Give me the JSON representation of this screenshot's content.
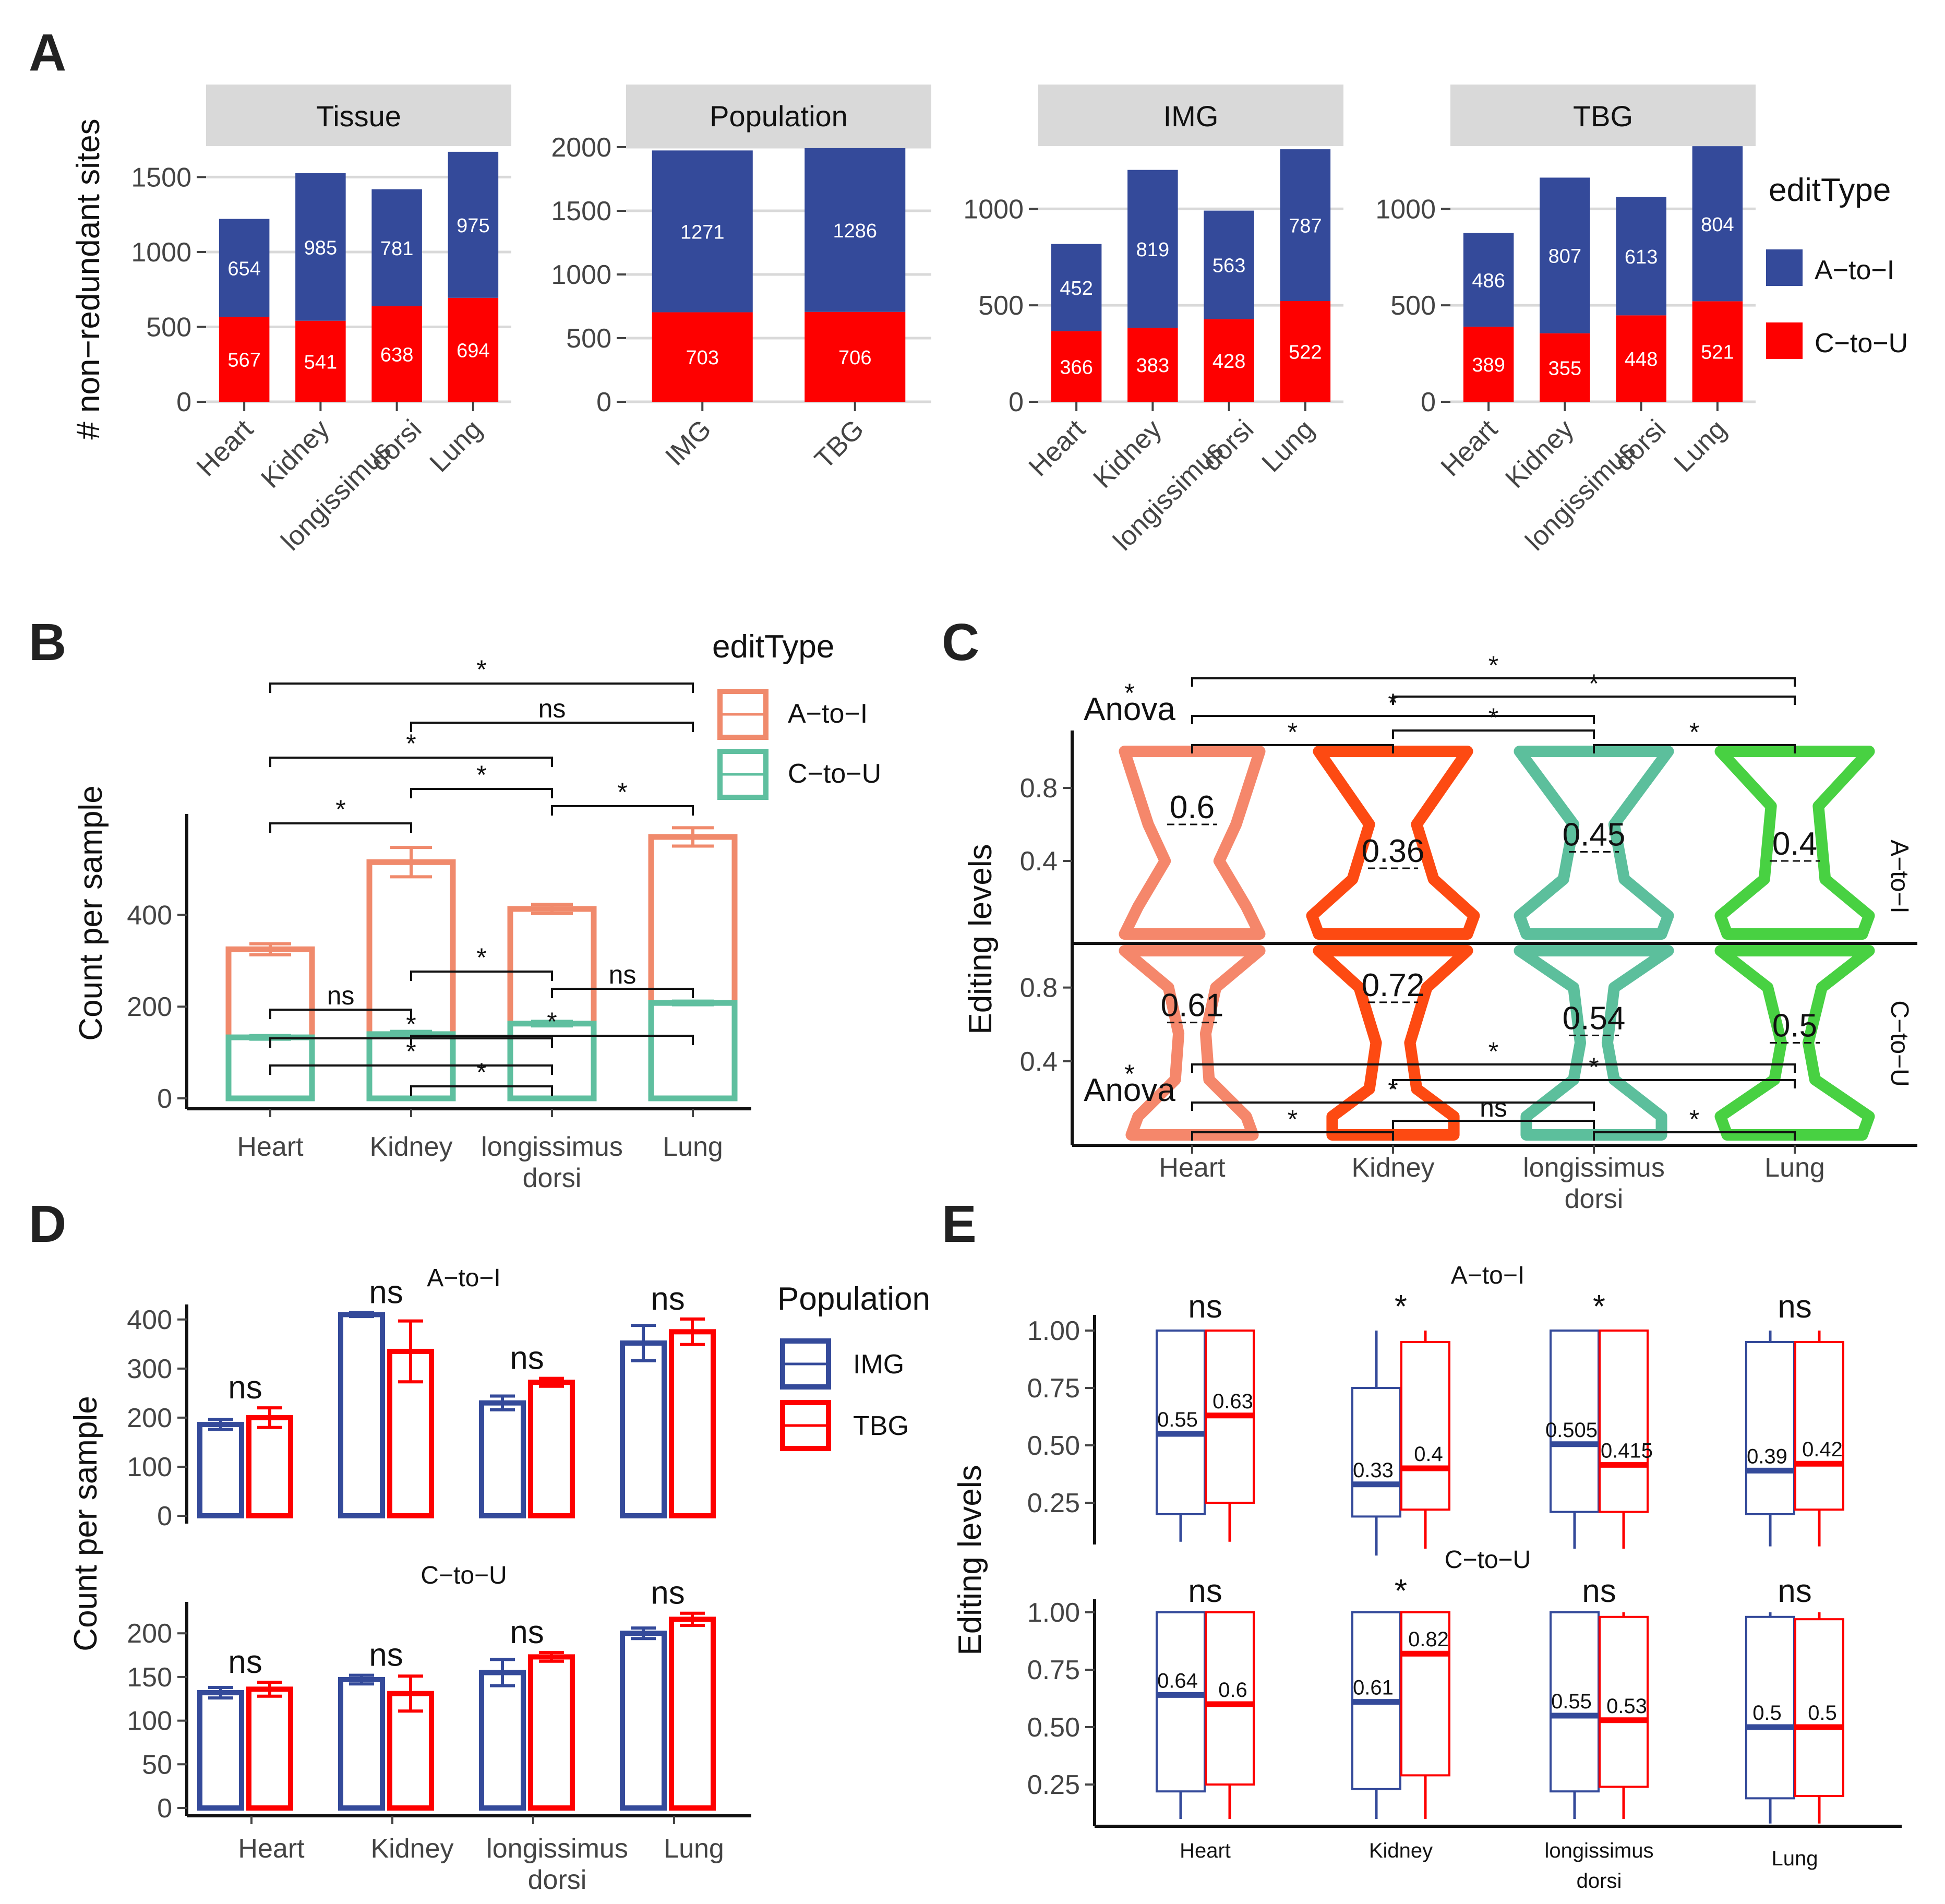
{
  "panel_labels": [
    "A",
    "B",
    "C",
    "D",
    "E"
  ],
  "colors": {
    "a_to_i_dark": "#344a9a",
    "c_to_u_dark": "#fe0000",
    "a_to_i_light": "#f08a6c",
    "c_to_u_light": "#5fbf9f",
    "heart_violin": "#f5876b",
    "kidney_violin": "#fd4a12",
    "ld_violin": "#5cbf9c",
    "lung_violin": "#48d142",
    "img": "#344a9a",
    "tbg": "#fe0000",
    "strip": "#d9d9d9"
  },
  "chart_data": [
    {
      "id": "A",
      "type": "bar",
      "stacked": true,
      "ylabel": "# non−redundant sites",
      "legend": {
        "title": "editType",
        "entries": [
          "A−to−I",
          "C−to−U"
        ]
      },
      "facets": [
        {
          "strip": "Tissue",
          "categories": [
            "Heart",
            "Kidney",
            "longissimus dorsi",
            "Lung"
          ],
          "ylim": [
            0,
            1700
          ],
          "yticks": [
            0,
            500,
            1000,
            1500
          ],
          "series": [
            {
              "name": "C−to−U",
              "values": [
                567,
                541,
                638,
                694
              ]
            },
            {
              "name": "A−to−I",
              "values": [
                654,
                985,
                781,
                975
              ]
            }
          ]
        },
        {
          "strip": "Population",
          "categories": [
            "IMG",
            "TBG"
          ],
          "ylim": [
            0,
            2000
          ],
          "yticks": [
            0,
            500,
            1000,
            1500,
            2000
          ],
          "series": [
            {
              "name": "C−to−U",
              "values": [
                703,
                706
              ]
            },
            {
              "name": "A−to−I",
              "values": [
                1271,
                1286
              ]
            }
          ]
        },
        {
          "strip": "IMG",
          "categories": [
            "Heart",
            "Kidney",
            "longissimus dorsi",
            "Lung"
          ],
          "ylim": [
            0,
            1320
          ],
          "yticks": [
            0,
            500,
            1000
          ],
          "series": [
            {
              "name": "C−to−U",
              "values": [
                366,
                383,
                428,
                522
              ]
            },
            {
              "name": "A−to−I",
              "values": [
                452,
                819,
                563,
                787
              ]
            }
          ]
        },
        {
          "strip": "TBG",
          "categories": [
            "Heart",
            "Kidney",
            "longissimus dorsi",
            "Lung"
          ],
          "ylim": [
            0,
            1320
          ],
          "yticks": [
            0,
            500,
            1000
          ],
          "series": [
            {
              "name": "C−to−U",
              "values": [
                389,
                355,
                448,
                521
              ]
            },
            {
              "name": "A−to−I",
              "values": [
                486,
                807,
                613,
                804
              ]
            }
          ]
        }
      ]
    },
    {
      "id": "B",
      "type": "bar",
      "ylabel": "Count per sample",
      "categories": [
        "Heart",
        "Kidney",
        "longissimus dorsi",
        "Lung"
      ],
      "ylim": [
        0,
        620
      ],
      "yticks": [
        0,
        200,
        400
      ],
      "legend": {
        "title": "editType",
        "entries": [
          "A−to−I",
          "C−to−U"
        ]
      },
      "series": [
        {
          "name": "A−to−I",
          "values": [
            325,
            515,
            413,
            570
          ],
          "errors": [
            12,
            32,
            10,
            20
          ]
        },
        {
          "name": "C−to−U",
          "values": [
            133,
            140,
            163,
            208
          ],
          "errors": [
            4,
            6,
            5,
            4
          ]
        }
      ],
      "significance": [
        "*",
        "ns",
        "*",
        "*",
        "*",
        "*",
        "ns",
        "*",
        "ns",
        "*",
        "*",
        "*",
        "*"
      ]
    },
    {
      "id": "C",
      "type": "violin",
      "ylabel": "Editing levels",
      "categories": [
        "Heart",
        "Kidney",
        "longissimus dorsi",
        "Lung"
      ],
      "yticks": [
        0.4,
        0.8
      ],
      "facets": [
        {
          "strip": "A−to−I",
          "medians": [
            0.6,
            0.36,
            0.45,
            0.4
          ],
          "test": "Anova",
          "test_sig": "*",
          "significance": [
            "*",
            "*",
            "*",
            "*",
            "*",
            "*"
          ]
        },
        {
          "strip": "C−to−U",
          "medians": [
            0.61,
            0.72,
            0.54,
            0.5
          ],
          "test": "Anova",
          "test_sig": "*",
          "significance": [
            "*",
            "*",
            "*",
            "ns",
            "*",
            "*"
          ]
        }
      ]
    },
    {
      "id": "D",
      "type": "bar",
      "ylabel": "Count per sample",
      "categories": [
        "Heart",
        "Kidney",
        "longissimus dorsi",
        "Lung"
      ],
      "legend": {
        "title": "Population",
        "entries": [
          "IMG",
          "TBG"
        ]
      },
      "facets": [
        {
          "strip": "A−to−I",
          "ylim": [
            0,
            420
          ],
          "yticks": [
            0,
            100,
            200,
            300,
            400
          ],
          "series": [
            {
              "name": "IMG",
              "values": [
                186,
                410,
                230,
                352
              ],
              "errors": [
                10,
                4,
                14,
                36
              ]
            },
            {
              "name": "TBG",
              "values": [
                200,
                335,
                272,
                375
              ],
              "errors": [
                20,
                62,
                8,
                26
              ]
            }
          ],
          "significance": [
            "ns",
            "ns",
            "ns",
            "ns"
          ]
        },
        {
          "strip": "C−to−U",
          "ylim": [
            0,
            230
          ],
          "yticks": [
            0,
            50,
            100,
            150,
            200
          ],
          "series": [
            {
              "name": "IMG",
              "values": [
                132,
                147,
                155,
                200
              ],
              "errors": [
                6,
                5,
                15,
                6
              ]
            },
            {
              "name": "TBG",
              "values": [
                136,
                131,
                173,
                216
              ],
              "errors": [
                8,
                20,
                5,
                7
              ]
            }
          ],
          "significance": [
            "ns",
            "ns",
            "ns",
            "ns"
          ]
        }
      ]
    },
    {
      "id": "E",
      "type": "boxplot",
      "ylabel": "Editing levels",
      "categories": [
        "Heart",
        "Kidney",
        "longissimus dorsi",
        "Lung"
      ],
      "yticks": [
        0.25,
        0.5,
        0.75,
        1.0
      ],
      "ytick_labels": [
        "0.25",
        "0.50",
        "0.75",
        "1.00"
      ],
      "facets": [
        {
          "strip": "A−to−I",
          "series": [
            {
              "name": "IMG",
              "medians": [
                0.55,
                0.33,
                0.505,
                0.39
              ],
              "median_labels": [
                "0.55",
                "0.33",
                "0.505",
                "0.39"
              ],
              "q1": [
                0.2,
                0.19,
                0.21,
                0.2
              ],
              "q3": [
                1.0,
                0.75,
                1.0,
                0.95
              ],
              "whisker_low": [
                0.08,
                0.02,
                0.05,
                0.06
              ],
              "whisker_high": [
                1.0,
                1.0,
                1.0,
                1.0
              ]
            },
            {
              "name": "TBG",
              "medians": [
                0.63,
                0.4,
                0.415,
                0.42
              ],
              "median_labels": [
                "0.63",
                "0.4",
                "0.415",
                "0.42"
              ],
              "q1": [
                0.25,
                0.22,
                0.21,
                0.22
              ],
              "q3": [
                1.0,
                0.95,
                1.0,
                0.95
              ],
              "whisker_low": [
                0.08,
                0.05,
                0.05,
                0.06
              ],
              "whisker_high": [
                1.0,
                1.0,
                1.0,
                1.0
              ]
            }
          ],
          "significance": [
            "ns",
            "*",
            "*",
            "ns"
          ]
        },
        {
          "strip": "C−to−U",
          "series": [
            {
              "name": "IMG",
              "medians": [
                0.64,
                0.61,
                0.55,
                0.5
              ],
              "median_labels": [
                "0.64",
                "0.61",
                "0.55",
                "0.5"
              ],
              "q1": [
                0.22,
                0.23,
                0.22,
                0.19
              ],
              "q3": [
                1.0,
                1.0,
                1.0,
                0.98
              ],
              "whisker_low": [
                0.1,
                0.1,
                0.1,
                0.08
              ],
              "whisker_high": [
                1.0,
                1.0,
                1.0,
                1.0
              ]
            },
            {
              "name": "TBG",
              "medians": [
                0.6,
                0.82,
                0.53,
                0.5
              ],
              "median_labels": [
                "0.6",
                "0.82",
                "0.53",
                "0.5"
              ],
              "q1": [
                0.25,
                0.29,
                0.24,
                0.2
              ],
              "q3": [
                1.0,
                1.0,
                0.98,
                0.97
              ],
              "whisker_low": [
                0.1,
                0.1,
                0.1,
                0.08
              ],
              "whisker_high": [
                1.0,
                1.0,
                1.0,
                1.0
              ]
            }
          ],
          "significance": [
            "ns",
            "*",
            "ns",
            "ns"
          ]
        }
      ]
    }
  ]
}
